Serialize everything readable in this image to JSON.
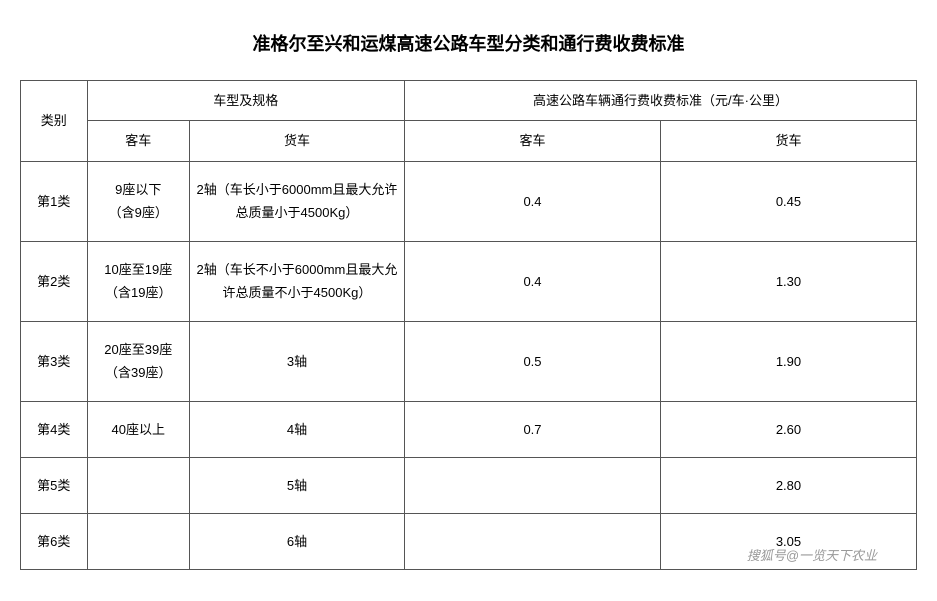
{
  "title": "准格尔至兴和运煤高速公路车型分类和通行费收费标准",
  "headers": {
    "category": "类别",
    "spec_group": "车型及规格",
    "fee_group": "高速公路车辆通行费收费标准（元/车·公里）",
    "bus": "客车",
    "truck": "货车",
    "fee_bus": "客车",
    "fee_truck": "货车"
  },
  "rows": [
    {
      "cat": "第1类",
      "bus_l1": "9座以下",
      "bus_l2": "（含9座）",
      "truck": "2轴（车长小于6000mm且最大允许总质量小于4500Kg）",
      "fee_bus": "0.4",
      "fee_truck": "0.45"
    },
    {
      "cat": "第2类",
      "bus_l1": "10座至19座",
      "bus_l2": "（含19座）",
      "truck": "2轴（车长不小于6000mm且最大允许总质量不小于4500Kg）",
      "fee_bus": "0.4",
      "fee_truck": "1.30"
    },
    {
      "cat": "第3类",
      "bus_l1": "20座至39座",
      "bus_l2": "（含39座）",
      "truck": "3轴",
      "fee_bus": "0.5",
      "fee_truck": "1.90"
    },
    {
      "cat": "第4类",
      "bus_l1": "40座以上",
      "bus_l2": "",
      "truck": "4轴",
      "fee_bus": "0.7",
      "fee_truck": "2.60"
    },
    {
      "cat": "第5类",
      "bus_l1": "",
      "bus_l2": "",
      "truck": "5轴",
      "fee_bus": "",
      "fee_truck": "2.80"
    },
    {
      "cat": "第6类",
      "bus_l1": "",
      "bus_l2": "",
      "truck": "6轴",
      "fee_bus": "",
      "fee_truck": "3.05"
    }
  ],
  "watermark": "搜狐号@一览天下农业",
  "colors": {
    "border": "#555555",
    "text": "#000000",
    "bg": "#ffffff",
    "watermark": "#999999"
  }
}
